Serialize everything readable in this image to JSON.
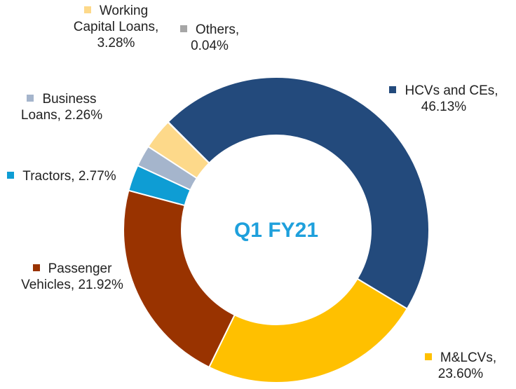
{
  "chart_data": {
    "type": "donut",
    "center_label": "Q1 FY21",
    "categories": [
      "HCVs and CEs,",
      "M&LCVs,",
      "Passenger Vehicles,",
      "Tractors,",
      "Business Loans,",
      "Working Capital Loans,",
      "Others,"
    ],
    "values": [
      46.13,
      23.6,
      21.92,
      2.77,
      2.26,
      3.28,
      0.04
    ],
    "value_labels": [
      "46.13%",
      "23.60%",
      "21.92%",
      "2.77%",
      "2.26%",
      "3.28%",
      "0.04%"
    ],
    "colors": [
      "#234a7c",
      "#ffc000",
      "#993300",
      "#0e9dd4",
      "#a5b5cc",
      "#fdd98a",
      "#a6a6a6"
    ]
  }
}
